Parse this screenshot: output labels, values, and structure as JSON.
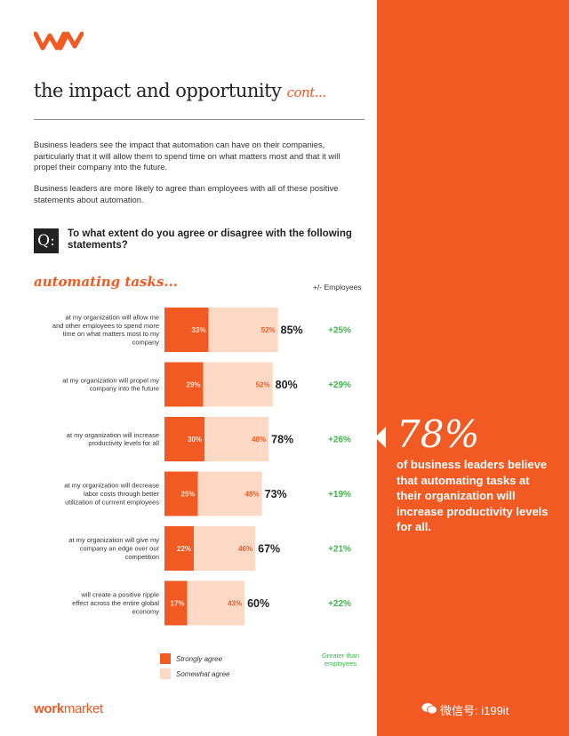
{
  "logo": {
    "icon": "workmarket-logo",
    "color": "#f15a22"
  },
  "header": {
    "title": "the impact and opportunity",
    "title_suffix": "cont..."
  },
  "intro": {
    "paragraph1": "Business leaders see the impact that automation can have on their companies, particularly that it will allow them to spend time on what matters most and that it will propel their company into the future.",
    "paragraph2": "Business leaders are more likely to agree than employees with all of these positive statements about automation."
  },
  "question": {
    "badge": "Q:",
    "text": "To what extent do you agree or disagree with the following statements?"
  },
  "section": {
    "title": "automating tasks...",
    "column_header": "+/- Employees"
  },
  "chart_data": {
    "type": "bar",
    "orientation": "horizontal-stacked",
    "categories": [
      "at my organization will allow me and other employees to spend more time on what matters most to my company",
      "at my organization will propel my company into the future",
      "at my organization will increase productivity levels for all",
      "at my organization will decrease labor costs through better utilization of currrent employees",
      "at my organization will give my company an edge over our competition",
      "will create a positive ripple effect across the entire global economy"
    ],
    "series": [
      {
        "name": "Strongly agree",
        "values": [
          33,
          29,
          30,
          25,
          22,
          17
        ],
        "labels": [
          "33%",
          "29%",
          "30%",
          "25%",
          "22%",
          "17%"
        ],
        "color": "#f15a22"
      },
      {
        "name": "Somewhat agree",
        "values": [
          52,
          52,
          48,
          48,
          46,
          43
        ],
        "labels": [
          "52%",
          "52%",
          "48%",
          "48%",
          "46%",
          "43%"
        ],
        "color": "#fbd9c4"
      }
    ],
    "totals": [
      "85%",
      "80%",
      "78%",
      "73%",
      "67%",
      "60%"
    ],
    "vs_employees": [
      "+25%",
      "+29%",
      "+26%",
      "+19%",
      "+21%",
      "+22%"
    ],
    "vs_employees_color": "#3db54a",
    "legend_note": "Greater than employees",
    "xlim": [
      0,
      100
    ]
  },
  "legend": {
    "strong": "Strongly agree",
    "somewhat": "Somewhat agree",
    "note": "Greater than employees"
  },
  "callout": {
    "figure": "78%",
    "text": "of business leaders believe that automating tasks at their organization will increase productivity levels for all."
  },
  "footer": {
    "brand_work": "work",
    "brand_market": "market",
    "watermark": "微信号: i199it"
  },
  "colors": {
    "accent": "#f15a22",
    "light": "#fbd9c4",
    "positive": "#3db54a"
  }
}
